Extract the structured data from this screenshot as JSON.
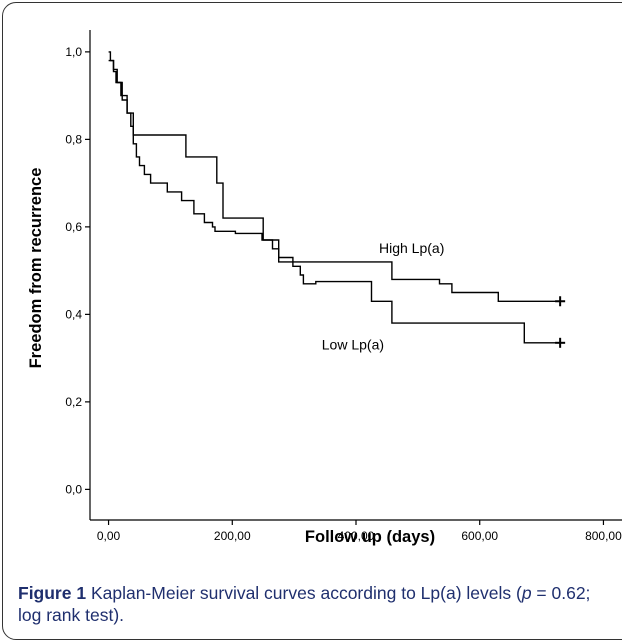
{
  "chart_data": {
    "type": "line",
    "step": true,
    "xlabel": "Follow up (days)",
    "ylabel": "Freedom from recurrence",
    "xlim": [
      -30,
      830
    ],
    "ylim": [
      -0.07,
      1.05
    ],
    "x_ticks": [
      0,
      200,
      400,
      600,
      800
    ],
    "x_tick_labels": [
      "0,00",
      "200,00",
      "400,00",
      "600,00",
      "800,00"
    ],
    "y_ticks": [
      0,
      0.2,
      0.4,
      0.6,
      0.8,
      1.0
    ],
    "y_tick_labels": [
      "0,0",
      "0,2",
      "0,4",
      "0,6",
      "0,8",
      "1,0"
    ],
    "grid": false,
    "series": [
      {
        "name": "High Lp(a)",
        "points": [
          [
            0,
            1.0
          ],
          [
            3,
            1.0
          ],
          [
            3,
            0.98
          ],
          [
            8,
            0.98
          ],
          [
            8,
            0.955
          ],
          [
            12,
            0.955
          ],
          [
            12,
            0.93
          ],
          [
            20,
            0.93
          ],
          [
            20,
            0.9
          ],
          [
            30,
            0.9
          ],
          [
            30,
            0.86
          ],
          [
            40,
            0.86
          ],
          [
            40,
            0.81
          ],
          [
            125,
            0.81
          ],
          [
            125,
            0.76
          ],
          [
            175,
            0.76
          ],
          [
            175,
            0.7
          ],
          [
            185,
            0.7
          ],
          [
            185,
            0.62
          ],
          [
            250,
            0.62
          ],
          [
            250,
            0.57
          ],
          [
            275,
            0.57
          ],
          [
            275,
            0.52
          ],
          [
            458,
            0.52
          ],
          [
            458,
            0.48
          ],
          [
            535,
            0.48
          ],
          [
            535,
            0.47
          ],
          [
            555,
            0.47
          ],
          [
            555,
            0.45
          ],
          [
            630,
            0.45
          ],
          [
            630,
            0.43
          ],
          [
            730,
            0.43
          ]
        ],
        "censor": [
          [
            730,
            0.43
          ]
        ]
      },
      {
        "name": "Low Lp(a)",
        "points": [
          [
            0,
            0.98
          ],
          [
            8,
            0.98
          ],
          [
            8,
            0.96
          ],
          [
            14,
            0.96
          ],
          [
            14,
            0.93
          ],
          [
            22,
            0.93
          ],
          [
            22,
            0.89
          ],
          [
            30,
            0.89
          ],
          [
            30,
            0.86
          ],
          [
            36,
            0.86
          ],
          [
            36,
            0.83
          ],
          [
            40,
            0.83
          ],
          [
            40,
            0.79
          ],
          [
            45,
            0.79
          ],
          [
            45,
            0.76
          ],
          [
            50,
            0.76
          ],
          [
            50,
            0.74
          ],
          [
            58,
            0.74
          ],
          [
            58,
            0.72
          ],
          [
            68,
            0.72
          ],
          [
            68,
            0.7
          ],
          [
            95,
            0.7
          ],
          [
            95,
            0.68
          ],
          [
            118,
            0.68
          ],
          [
            118,
            0.66
          ],
          [
            138,
            0.66
          ],
          [
            138,
            0.63
          ],
          [
            155,
            0.63
          ],
          [
            155,
            0.61
          ],
          [
            168,
            0.61
          ],
          [
            168,
            0.6
          ],
          [
            172,
            0.6
          ],
          [
            172,
            0.59
          ],
          [
            205,
            0.59
          ],
          [
            205,
            0.585
          ],
          [
            248,
            0.585
          ],
          [
            248,
            0.57
          ],
          [
            265,
            0.57
          ],
          [
            265,
            0.55
          ],
          [
            275,
            0.55
          ],
          [
            275,
            0.53
          ],
          [
            298,
            0.53
          ],
          [
            298,
            0.51
          ],
          [
            310,
            0.51
          ],
          [
            310,
            0.49
          ],
          [
            315,
            0.49
          ],
          [
            315,
            0.47
          ],
          [
            335,
            0.47
          ],
          [
            335,
            0.475
          ],
          [
            425,
            0.475
          ],
          [
            425,
            0.43
          ],
          [
            458,
            0.43
          ],
          [
            458,
            0.38
          ],
          [
            672,
            0.38
          ],
          [
            672,
            0.335
          ],
          [
            730,
            0.335
          ]
        ],
        "censor": [
          [
            730,
            0.335
          ]
        ]
      }
    ],
    "annotations": [
      {
        "text": "High Lp(a)",
        "x": 490,
        "y": 0.54
      },
      {
        "text": "Low Lp(a)",
        "x": 395,
        "y": 0.32
      }
    ]
  },
  "caption": {
    "label": "Figure 1",
    "text_1": " Kaplan-Meier survival curves according to Lp(a) levels (",
    "italic": "p",
    "text_2": " = 0.62; log rank test)",
    "end": "."
  },
  "colors": {
    "axis": "#000000",
    "line": "#000000",
    "caption": "#1f2f6e",
    "frame": "#333333"
  }
}
